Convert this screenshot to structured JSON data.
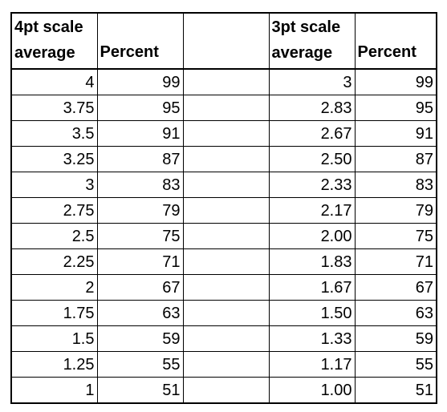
{
  "table": {
    "headers": {
      "col1_line1": "4pt scale",
      "col1_line2": "average",
      "col2": "Percent",
      "col3": "",
      "col4_line1": "3pt scale",
      "col4_line2": "average",
      "col5": "Percent"
    },
    "rows": [
      {
        "avg4": "4",
        "pct4": "99",
        "avg3": "3",
        "pct3": "99"
      },
      {
        "avg4": "3.75",
        "pct4": "95",
        "avg3": "2.83",
        "pct3": "95"
      },
      {
        "avg4": "3.5",
        "pct4": "91",
        "avg3": "2.67",
        "pct3": "91"
      },
      {
        "avg4": "3.25",
        "pct4": "87",
        "avg3": "2.50",
        "pct3": "87"
      },
      {
        "avg4": "3",
        "pct4": "83",
        "avg3": "2.33",
        "pct3": "83"
      },
      {
        "avg4": "2.75",
        "pct4": "79",
        "avg3": "2.17",
        "pct3": "79"
      },
      {
        "avg4": "2.5",
        "pct4": "75",
        "avg3": "2.00",
        "pct3": "75"
      },
      {
        "avg4": "2.25",
        "pct4": "71",
        "avg3": "1.83",
        "pct3": "71"
      },
      {
        "avg4": "2",
        "pct4": "67",
        "avg3": "1.67",
        "pct3": "67"
      },
      {
        "avg4": "1.75",
        "pct4": "63",
        "avg3": "1.50",
        "pct3": "63"
      },
      {
        "avg4": "1.5",
        "pct4": "59",
        "avg3": "1.33",
        "pct3": "59"
      },
      {
        "avg4": "1.25",
        "pct4": "55",
        "avg3": "1.17",
        "pct3": "55"
      },
      {
        "avg4": "1",
        "pct4": "51",
        "avg3": "1.00",
        "pct3": "51"
      }
    ]
  }
}
